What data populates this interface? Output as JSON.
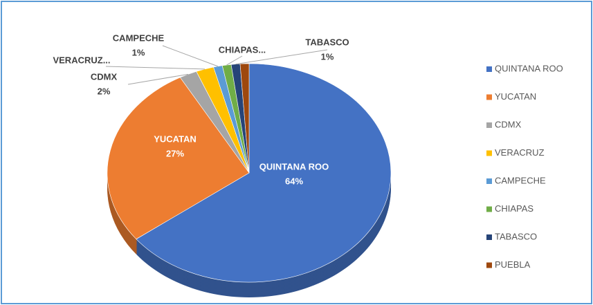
{
  "chart_data": {
    "type": "pie",
    "categories": [
      "QUINTANA ROO",
      "YUCATAN",
      "CDMX",
      "VERACRUZ",
      "CAMPECHE",
      "CHIAPAS",
      "TABASCO",
      "PUEBLA"
    ],
    "values": [
      64,
      27,
      2,
      2,
      1,
      1,
      1,
      1
    ],
    "label_names": [
      "QUINTANA ROO",
      "YUCATAN",
      "CDMX",
      "VERACRUZ...",
      "CAMPECHE",
      "CHIAPAS...",
      "TABASCO",
      null
    ],
    "value_labels": [
      "64%",
      "27%",
      "2%",
      null,
      "1%",
      null,
      "1%",
      null
    ],
    "colors": [
      "#4472c4",
      "#ed7d31",
      "#a5a5a5",
      "#ffc000",
      "#5b9bd5",
      "#70ad47",
      "#264478",
      "#9e480e"
    ],
    "legend": "right"
  }
}
